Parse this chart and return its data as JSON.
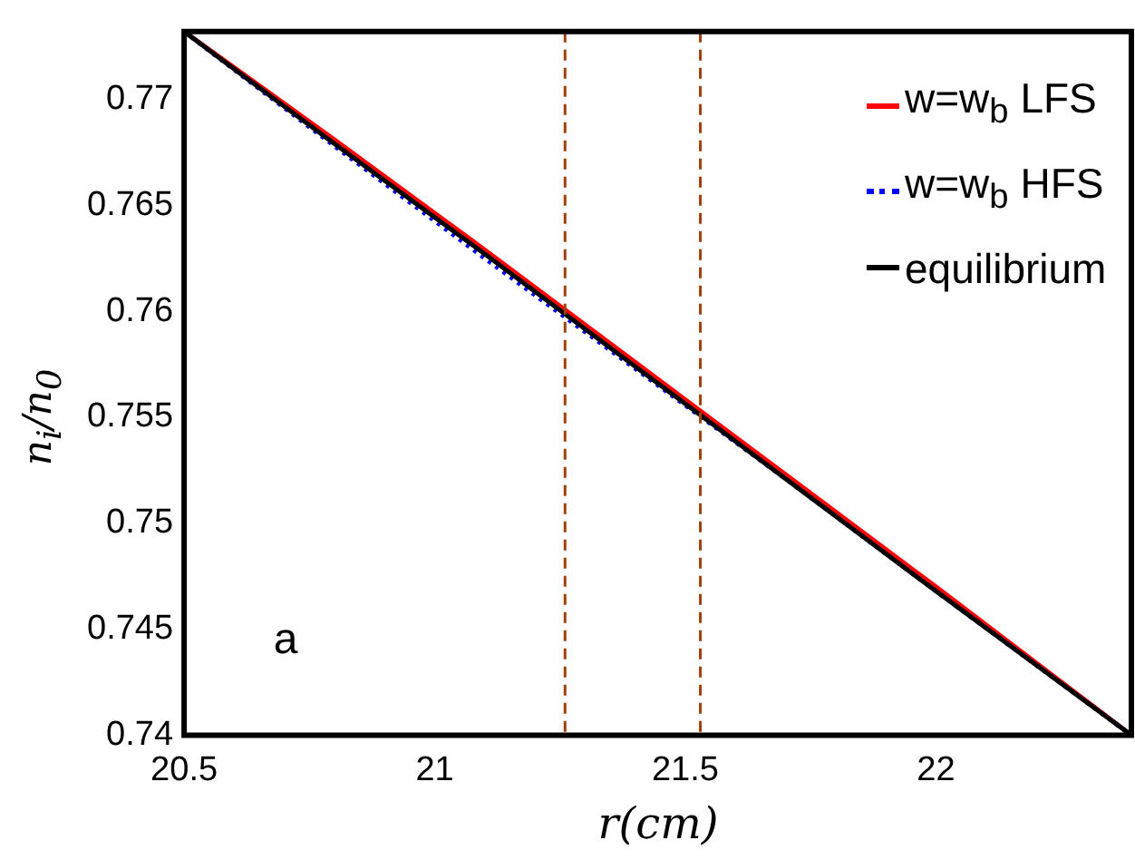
{
  "chart_data": {
    "type": "line",
    "xlabel": "r(cm)",
    "ylabel": "n$_{i}$/n$_{0}$",
    "x": [
      20.5,
      20.8,
      21.1,
      21.4,
      21.7,
      22.0,
      22.39
    ],
    "series": [
      {
        "name": "w=w$_{b}$ LFS",
        "color": "#ff0000",
        "line_style": "solid",
        "values": [
          0.7732,
          0.7681,
          0.7629,
          0.7576,
          0.7523,
          0.747,
          0.74
        ]
      },
      {
        "name": "w=w$_{b}$ HFS",
        "color": "#0000ff",
        "line_style": "dotted",
        "values": [
          0.7732,
          0.7678,
          0.7625,
          0.7573,
          0.7521,
          0.7468,
          0.74
        ]
      },
      {
        "name": "equilibrium",
        "color": "#000000",
        "line_style": "solid",
        "values": [
          0.7732,
          0.7679,
          0.7627,
          0.7574,
          0.7521,
          0.7468,
          0.74
        ]
      }
    ],
    "xlim": [
      20.5,
      22.39
    ],
    "xticks": [
      20.5,
      21,
      21.5,
      22
    ],
    "ylim": [
      0.74,
      0.7732
    ],
    "yticks": [
      0.74,
      0.745,
      0.75,
      0.755,
      0.76,
      0.765,
      0.77
    ],
    "ref_lines": [
      {
        "axis": "x",
        "value": 21.26,
        "color": "#a0400a",
        "line_style": "dashed"
      },
      {
        "axis": "x",
        "value": 21.53,
        "color": "#a0400a",
        "line_style": "dashed"
      }
    ],
    "annotations": [
      "a"
    ],
    "grid": false,
    "legend": "top right",
    "marker": "none"
  }
}
